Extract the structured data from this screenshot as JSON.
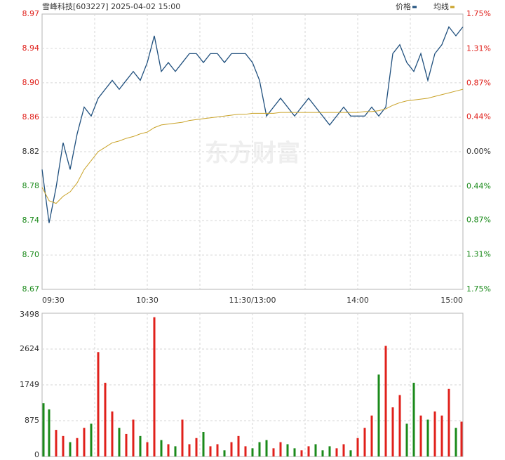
{
  "chart_data": [
    {
      "type": "line",
      "title": "雪峰科技[603227] 2025-04-02 15:00",
      "watermark": "东方财富",
      "x": [
        0,
        4,
        8,
        12,
        16,
        20,
        24,
        28,
        32,
        36,
        40,
        44,
        48,
        52,
        56,
        60,
        64,
        68,
        72,
        76,
        80,
        84,
        88,
        92,
        96,
        100,
        104,
        108,
        112,
        116,
        120,
        124,
        128,
        132,
        136,
        140,
        144,
        148,
        152,
        156,
        160,
        164,
        168,
        172,
        176,
        180,
        184,
        188,
        192,
        196,
        200,
        204,
        208,
        212,
        216,
        220,
        224,
        228,
        232,
        236,
        240
      ],
      "series": [
        {
          "name": "价格",
          "color": "#1f4f7d",
          "values": [
            8.8,
            8.74,
            8.78,
            8.83,
            8.8,
            8.84,
            8.87,
            8.86,
            8.88,
            8.89,
            8.9,
            8.89,
            8.9,
            8.91,
            8.9,
            8.92,
            8.95,
            8.91,
            8.92,
            8.91,
            8.92,
            8.93,
            8.93,
            8.92,
            8.93,
            8.93,
            8.92,
            8.93,
            8.93,
            8.93,
            8.92,
            8.9,
            8.86,
            8.87,
            8.88,
            8.87,
            8.86,
            8.87,
            8.88,
            8.87,
            8.86,
            8.85,
            8.86,
            8.87,
            8.86,
            8.86,
            8.86,
            8.87,
            8.86,
            8.87,
            8.93,
            8.94,
            8.92,
            8.91,
            8.93,
            8.9,
            8.93,
            8.94,
            8.96,
            8.95,
            8.96
          ]
        },
        {
          "name": "均线",
          "color": "#c9a227",
          "values": [
            8.78,
            8.765,
            8.762,
            8.77,
            8.775,
            8.785,
            8.8,
            8.81,
            8.82,
            8.825,
            8.83,
            8.832,
            8.835,
            8.837,
            8.84,
            8.842,
            8.847,
            8.85,
            8.851,
            8.852,
            8.853,
            8.855,
            8.856,
            8.857,
            8.858,
            8.859,
            8.86,
            8.861,
            8.862,
            8.862,
            8.863,
            8.863,
            8.863,
            8.863,
            8.864,
            8.864,
            8.864,
            8.864,
            8.864,
            8.864,
            8.864,
            8.864,
            8.864,
            8.864,
            8.864,
            8.864,
            8.865,
            8.865,
            8.866,
            8.868,
            8.872,
            8.875,
            8.877,
            8.878,
            8.879,
            8.88,
            8.882,
            8.884,
            8.886,
            8.888,
            8.89
          ]
        }
      ],
      "xlim": [
        0,
        240
      ],
      "xticks": [
        {
          "value": 0,
          "label": "09:30"
        },
        {
          "value": 60,
          "label": "10:30"
        },
        {
          "value": 120,
          "label": "11:30/13:00"
        },
        {
          "value": 180,
          "label": "14:00"
        },
        {
          "value": 240,
          "label": "15:00"
        }
      ],
      "ylim": [
        8.6656,
        8.9744
      ],
      "yticks": [
        {
          "value": 8.9744,
          "label": "8.97"
        },
        {
          "value": 8.9359,
          "label": "8.94"
        },
        {
          "value": 8.8973,
          "label": "8.90"
        },
        {
          "value": 8.8586,
          "label": "8.86"
        },
        {
          "value": 8.82,
          "label": "8.82"
        },
        {
          "value": 8.7814,
          "label": "8.78"
        },
        {
          "value": 8.7427,
          "label": "8.74"
        },
        {
          "value": 8.7041,
          "label": "8.70"
        },
        {
          "value": 8.6656,
          "label": "8.67"
        }
      ],
      "y2lim": [
        -1.75,
        1.75
      ],
      "y2ticks": [
        {
          "value": 1.75,
          "label": "1.75%"
        },
        {
          "value": 1.31,
          "label": "1.31%"
        },
        {
          "value": 0.87,
          "label": "0.87%"
        },
        {
          "value": 0.44,
          "label": "0.44%"
        },
        {
          "value": 0,
          "label": "0.00%"
        },
        {
          "value": -0.44,
          "label": "0.44%"
        },
        {
          "value": -0.87,
          "label": "0.87%"
        },
        {
          "value": -1.31,
          "label": "1.31%"
        },
        {
          "value": -1.75,
          "label": "1.75%"
        }
      ],
      "grid": true
    },
    {
      "type": "bar",
      "x": [
        0,
        4,
        8,
        12,
        16,
        20,
        24,
        28,
        32,
        36,
        40,
        44,
        48,
        52,
        56,
        60,
        64,
        68,
        72,
        76,
        80,
        84,
        88,
        92,
        96,
        100,
        104,
        108,
        112,
        116,
        120,
        124,
        128,
        132,
        136,
        140,
        144,
        148,
        152,
        156,
        160,
        164,
        168,
        172,
        176,
        180,
        184,
        188,
        192,
        196,
        200,
        204,
        208,
        212,
        216,
        220,
        224,
        228,
        232,
        236,
        240
      ],
      "values": [
        1300,
        1150,
        650,
        500,
        350,
        450,
        700,
        800,
        2550,
        1800,
        1100,
        700,
        550,
        900,
        500,
        350,
        3400,
        400,
        300,
        250,
        900,
        300,
        450,
        600,
        250,
        300,
        150,
        350,
        500,
        250,
        200,
        350,
        400,
        200,
        350,
        300,
        200,
        150,
        250,
        300,
        150,
        250,
        200,
        300,
        150,
        450,
        700,
        1000,
        2000,
        2700,
        1200,
        1500,
        800,
        1800,
        1000,
        900,
        1100,
        1000,
        1650,
        700,
        850
      ],
      "palette": {
        "r": "#e0201b",
        "g": "#1a8a1a"
      },
      "colors": [
        "g",
        "g",
        "r",
        "r",
        "g",
        "r",
        "r",
        "g",
        "r",
        "r",
        "r",
        "g",
        "r",
        "r",
        "g",
        "r",
        "r",
        "g",
        "r",
        "g",
        "r",
        "r",
        "r",
        "g",
        "r",
        "r",
        "g",
        "r",
        "r",
        "r",
        "g",
        "g",
        "g",
        "r",
        "r",
        "g",
        "g",
        "r",
        "r",
        "g",
        "g",
        "g",
        "r",
        "r",
        "g",
        "r",
        "r",
        "r",
        "g",
        "r",
        "r",
        "r",
        "g",
        "g",
        "r",
        "g",
        "r",
        "r",
        "r",
        "g",
        "r"
      ],
      "xlim": [
        0,
        240
      ],
      "ylim": [
        0,
        3498
      ],
      "yticks": [
        0,
        875,
        1749,
        2624,
        3498
      ],
      "grid": true
    }
  ]
}
